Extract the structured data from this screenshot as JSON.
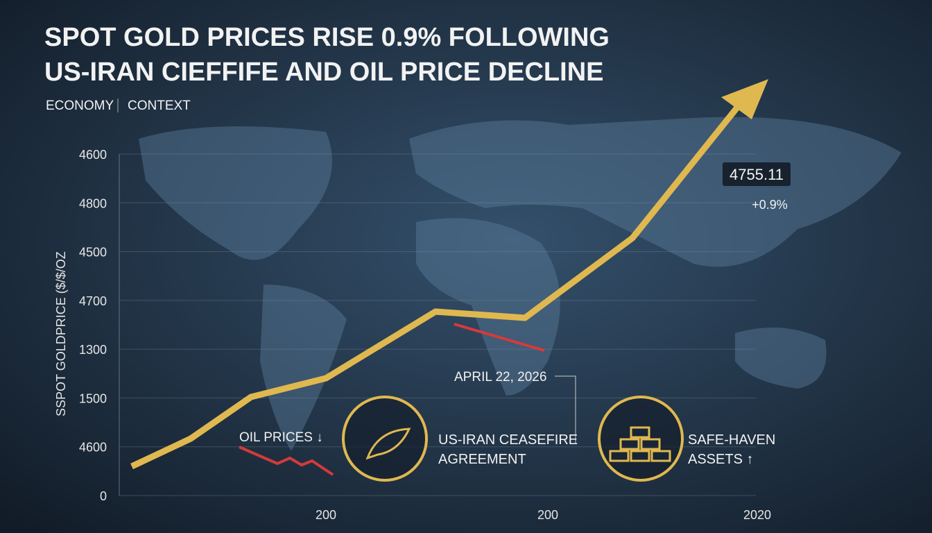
{
  "header": {
    "title_lines": [
      "SPOT GOLD PRICES RISE 0.9% FOLLOWING",
      "US-IRAN CIEFFIFE AND OIL PRICE DECLINE"
    ],
    "tags": [
      "ECONOMY",
      "CONTEXT"
    ]
  },
  "axis": {
    "y_title": "SSPOT  GOLDPRICE ($/$/OZ",
    "y_labels": [
      "4600",
      "4800",
      "4500",
      "4700",
      "1300",
      "1500",
      "4600",
      "0"
    ],
    "x_labels": [
      "200",
      "200",
      "2020"
    ]
  },
  "callouts": {
    "price": "4755.11",
    "change": "+0.9%",
    "date": "APRIL 22, 2026",
    "oil": "OIL PRICES ↓",
    "ceasefire_lines": [
      "US-IRAN CEASEFIRE",
      "AGREEMENT"
    ],
    "haven_lines": [
      "SAFE-HAVEN",
      "ASSETS ↑"
    ]
  }
}
